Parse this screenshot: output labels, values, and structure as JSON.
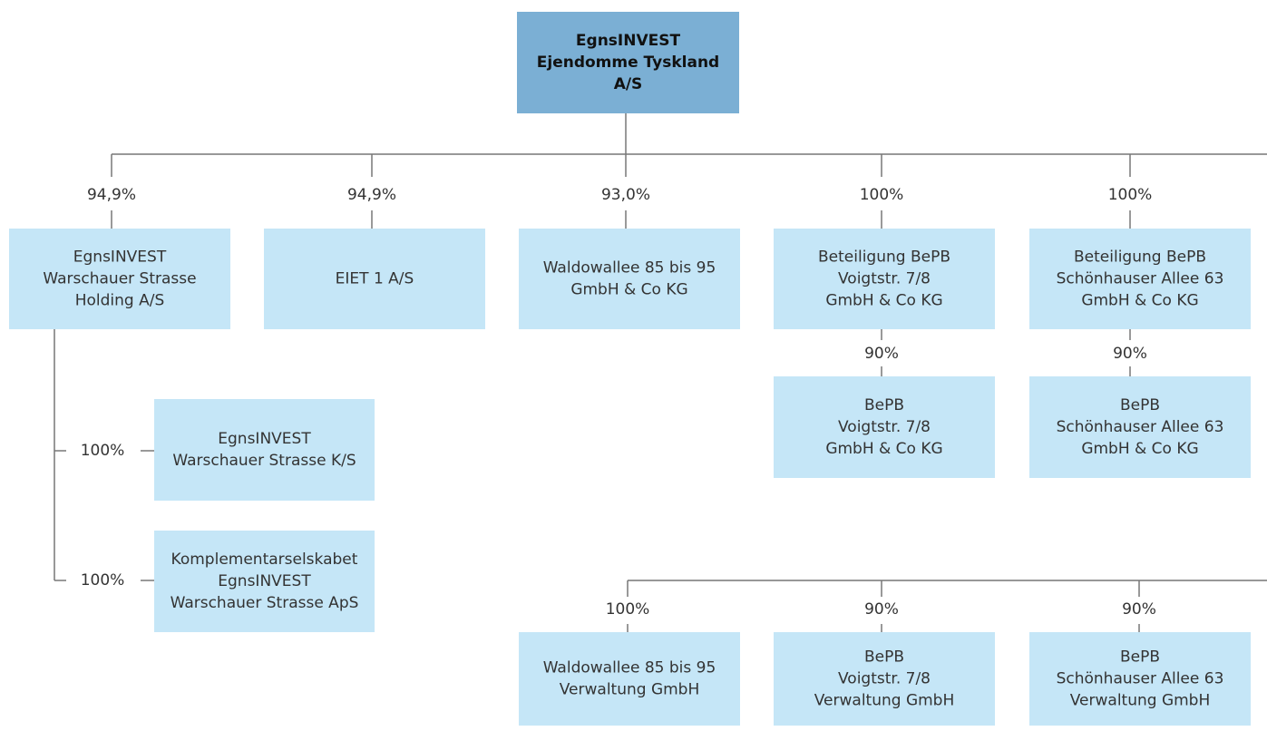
{
  "nodes": [
    {
      "lines": [
        "EgnsINVEST",
        "Ejendomme Tyskland",
        "A/S"
      ]
    },
    {
      "lines": [
        "EgnsINVEST",
        "Warschauer Strasse",
        "Holding A/S"
      ],
      "share": "94,9%"
    },
    {
      "lines": [
        "EIET 1 A/S"
      ],
      "share": "94,9%"
    },
    {
      "lines": [
        "Waldowallee 85 bis 95",
        "GmbH & Co KG"
      ],
      "share": "93,0%"
    },
    {
      "lines": [
        "Beteiligung BePB",
        "Voigtstr. 7/8",
        "GmbH & Co KG"
      ],
      "share": "100%"
    },
    {
      "lines": [
        "Beteiligung BePB",
        "Schönhauser Allee 63",
        "GmbH & Co KG"
      ],
      "share": "100%"
    },
    {
      "lines": [
        "BePB",
        "Voigtstr. 7/8",
        "GmbH & Co KG"
      ],
      "share": "90%"
    },
    {
      "lines": [
        "BePB",
        "Schönhauser Allee 63",
        "GmbH & Co KG"
      ],
      "share": "90%"
    },
    {
      "lines": [
        "EgnsINVEST",
        "Warschauer Strasse K/S"
      ],
      "share": "100%"
    },
    {
      "lines": [
        "Komplementarselskabet",
        "EgnsINVEST",
        "Warschauer Strasse ApS"
      ],
      "share": "100%"
    },
    {
      "lines": [
        "Waldowallee 85 bis 95",
        "Verwaltung GmbH"
      ],
      "share": "100%"
    },
    {
      "lines": [
        "BePB",
        "Voigtstr. 7/8",
        "Verwaltung GmbH"
      ],
      "share": "90%"
    },
    {
      "lines": [
        "BePB",
        "Schönhauser Allee 63",
        "Verwaltung GmbH"
      ],
      "share": "90%"
    }
  ]
}
